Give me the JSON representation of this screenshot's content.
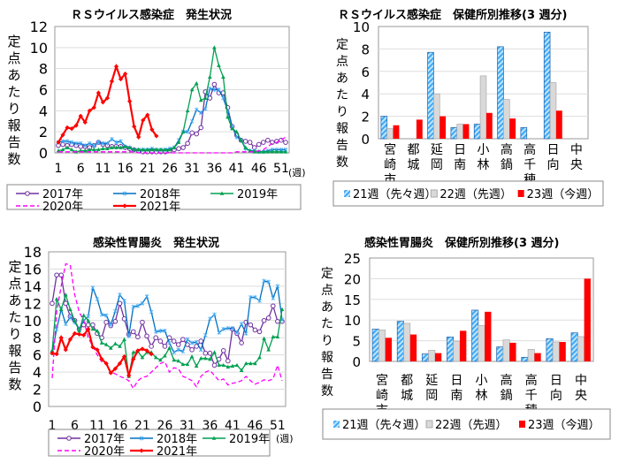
{
  "chart_data": [
    {
      "type": "line",
      "title": "ＲＳウイルス感染症　発生状況",
      "ylabel": "定点あたり報告数",
      "xlabel": "(週)",
      "ylim": [
        0,
        12
      ],
      "yticks": [
        0,
        2,
        4,
        6,
        8,
        10,
        12
      ],
      "xticks": [
        1,
        6,
        11,
        16,
        21,
        26,
        31,
        36,
        41,
        46,
        51
      ],
      "series": [
        {
          "name": "2017年",
          "color": "#7030a0",
          "marker": "circle",
          "values": [
            0.7,
            0.8,
            0.7,
            0.8,
            0.7,
            0.6,
            0.6,
            0.5,
            0.7,
            1.0,
            0.8,
            0.7,
            0.6,
            0.6,
            0.6,
            0.5,
            0.4,
            0.3,
            0.2,
            0.1,
            0.1,
            0.1,
            0.1,
            0.1,
            0.1,
            0.2,
            0.3,
            0.4,
            0.5,
            0.9,
            1.9,
            1.8,
            2.4,
            5.8,
            5.2,
            6.5,
            5.7,
            5.7,
            4.3,
            2.5,
            1.7,
            1.2,
            1.1,
            1.0,
            0.5,
            0.8,
            1.0,
            1.2,
            1.0,
            1.1,
            1.2,
            1.0
          ]
        },
        {
          "name": "2018年",
          "color": "#0070c0",
          "marker": "star",
          "values": [
            1.0,
            1.1,
            1.1,
            1.0,
            0.9,
            0.9,
            0.7,
            0.9,
            0.7,
            1.0,
            0.9,
            0.9,
            1.3,
            1.0,
            1.1,
            0.6,
            0.5,
            0.3,
            0.3,
            0.3,
            0.3,
            0.4,
            0.3,
            0.3,
            0.3,
            0.4,
            0.5,
            1.2,
            2.0,
            2.0,
            3.0,
            4.1,
            3.8,
            4.2,
            6.1,
            6.0,
            6.0,
            5.2,
            4.0,
            2.5,
            1.5,
            1.2,
            0.4,
            0.2,
            0.2,
            0.1,
            0.1,
            0.2,
            0.3,
            0.3,
            0.3,
            0.3
          ]
        },
        {
          "name": "2019年",
          "color": "#00a050",
          "marker": "triangle",
          "values": [
            0.2,
            0.3,
            0.5,
            0.3,
            0.1,
            0.2,
            0.2,
            0.3,
            0.3,
            0.3,
            0.4,
            0.4,
            0.5,
            0.5,
            0.5,
            0.6,
            0.5,
            0.3,
            0.3,
            0.3,
            0.3,
            0.3,
            0.3,
            0.3,
            0.3,
            0.3,
            0.5,
            1.0,
            2.0,
            4.0,
            6.0,
            6.6,
            5.0,
            5.2,
            7.2,
            10.0,
            8.3,
            7.2,
            3.4,
            2.3,
            2.0,
            1.2,
            0.5,
            0.2,
            0.1,
            0.1,
            0.1,
            0.1,
            0.1,
            0.1,
            0.1,
            0.1
          ]
        },
        {
          "name": "2020年",
          "color": "#ff00ff",
          "marker": "dash",
          "values": [
            0.1,
            0.1,
            0.1,
            0.1,
            0.1,
            0.1,
            0.1,
            0.1,
            0.1,
            0.1,
            0.1,
            0.1,
            0.1,
            0.1,
            0.1,
            0.1,
            0.1,
            0.1,
            0,
            0,
            0,
            0,
            0,
            0,
            0,
            0,
            0,
            0,
            0,
            0,
            0,
            0,
            0,
            0,
            0,
            0,
            0,
            0,
            0,
            0,
            0.1,
            0.1,
            0.1,
            0.1,
            0.1,
            0.2,
            0.3,
            0.6,
            0.9,
            1.0,
            1.2,
            1.5
          ]
        },
        {
          "name": "2021年",
          "color": "#ff0000",
          "marker": "diamond",
          "values": [
            1.0,
            1.7,
            2.4,
            2.3,
            2.6,
            3.5,
            2.9,
            4.0,
            4.3,
            5.7,
            4.8,
            5.2,
            6.8,
            8.2,
            7.0,
            7.5,
            4.9,
            2.5,
            1.5,
            3.1,
            3.6,
            2.2,
            1.6
          ]
        }
      ]
    },
    {
      "type": "bar",
      "title": "ＲＳウイルス感染症　保健所別推移(3 週分)",
      "ylabel": "定点あたり報告数",
      "ylim": [
        0,
        10
      ],
      "yticks": [
        0,
        2,
        4,
        6,
        8,
        10
      ],
      "categories": [
        "宮崎市",
        "都城",
        "延岡",
        "日南",
        "小林",
        "高鍋",
        "高千穂",
        "日向",
        "中央"
      ],
      "series": [
        {
          "name": "21週（先々週）",
          "color": "#3fa9f5",
          "pattern": "hatch",
          "values": [
            2.0,
            0,
            7.7,
            1.0,
            1.3,
            8.2,
            1.0,
            9.5,
            0
          ]
        },
        {
          "name": "22週（先週）",
          "color": "#d9d9d9",
          "pattern": "solid",
          "values": [
            0.9,
            0,
            4.0,
            1.3,
            5.6,
            3.5,
            0,
            5.0,
            0
          ]
        },
        {
          "name": "23週（今週）",
          "color": "#ff0000",
          "pattern": "solid",
          "values": [
            1.2,
            1.7,
            2.0,
            1.3,
            2.3,
            1.8,
            0,
            2.5,
            0
          ]
        }
      ]
    },
    {
      "type": "line",
      "title": "感染性胃腸炎　発生状況",
      "ylabel": "定点あたり報告数",
      "xlabel": "(週)",
      "ylim": [
        0,
        18
      ],
      "yticks": [
        0,
        2,
        4,
        6,
        8,
        10,
        12,
        14,
        16,
        18
      ],
      "xticks": [
        1,
        6,
        11,
        16,
        21,
        26,
        31,
        36,
        41,
        46,
        51
      ],
      "series": [
        {
          "name": "2017年",
          "color": "#7030a0",
          "marker": "circle",
          "values": [
            12,
            15.3,
            15.3,
            12,
            10.5,
            10,
            9,
            9.5,
            9.5,
            9.5,
            8.5,
            8,
            9.8,
            9.4,
            9.9,
            12,
            10.2,
            8.4,
            8.7,
            8.1,
            9.8,
            8.2,
            7,
            8,
            7.6,
            7,
            8,
            7.6,
            7.2,
            7.8,
            7.2,
            6.6,
            7,
            7.6,
            6.2,
            6.2,
            4.8,
            5.5,
            6.5,
            5.3,
            9,
            8.5,
            7.4,
            9.8,
            9.5,
            8.9,
            8.7,
            10,
            10.3,
            11.7,
            9.9,
            9.9
          ]
        },
        {
          "name": "2018年",
          "color": "#0070c0",
          "marker": "star",
          "values": [
            6.3,
            9,
            11.3,
            9.6,
            10.4,
            9.8,
            9,
            10,
            10.5,
            13.8,
            12.5,
            10.7,
            10.6,
            9.5,
            11.1,
            13,
            12.3,
            8.2,
            11.6,
            11.7,
            12,
            12.8,
            11,
            8.7,
            8.8,
            8.8,
            7.4,
            6.3,
            6.6,
            6.4,
            7.8,
            7.4,
            7.5,
            6.6,
            8.3,
            10.2,
            10.7,
            8.6,
            9,
            9.1,
            9.1,
            8.6,
            9.6,
            8.5,
            12.7,
            12.7,
            12.3,
            14.6,
            14.5,
            12.6,
            14,
            10.1
          ]
        },
        {
          "name": "2019年",
          "color": "#00a050",
          "marker": "triangle",
          "values": [
            6.5,
            12.5,
            11.3,
            13,
            11.3,
            10,
            8.8,
            10.6,
            10,
            9,
            8.8,
            7.4,
            7.2,
            6.8,
            7.3,
            7,
            7.8,
            3.5,
            6.3,
            6.4,
            5.7,
            6.3,
            6.3,
            5.7,
            5.4,
            5.9,
            6.8,
            5.4,
            5.3,
            4.9,
            4.9,
            5.8,
            4.7,
            5.6,
            5.6,
            5.5,
            6.3,
            4.8,
            4.8,
            4.6,
            4.7,
            4.8,
            4.2,
            5,
            5,
            5,
            5.7,
            7.9,
            6.6,
            8.1,
            8.1,
            11.3
          ]
        },
        {
          "name": "2020年",
          "color": "#ff00ff",
          "marker": "dash",
          "values": [
            3.3,
            11,
            14,
            16.6,
            16.5,
            13,
            11,
            10,
            8,
            7,
            6,
            5.2,
            5,
            4,
            3.8,
            3.5,
            3.3,
            3,
            2.1,
            3,
            3.4,
            3.5,
            4,
            4.5,
            5,
            5.2,
            4,
            4.5,
            4.4,
            3.5,
            3.3,
            3,
            2.3,
            3.5,
            4,
            4.2,
            3.6,
            3,
            3.2,
            2.5,
            2.7,
            2.8,
            3,
            3.5,
            3,
            2.6,
            2.8,
            3.1,
            3,
            3.2,
            4.8,
            3
          ]
        },
        {
          "name": "2021年",
          "color": "#ff0000",
          "marker": "diamond",
          "values": [
            6.2,
            6.1,
            8.0,
            6.6,
            7.8,
            8.5,
            8.4,
            8.3,
            9.0,
            6.9,
            6.6,
            5.5,
            5.0,
            3.9,
            4.4,
            5.0,
            5.8,
            3.6,
            5.5,
            6.5,
            6.7,
            6.5,
            6.1
          ]
        }
      ]
    },
    {
      "type": "bar",
      "title": "感染性胃腸炎　保健所別推移(3 週分)",
      "ylabel": "定点あたり報告数",
      "ylim": [
        0,
        25
      ],
      "yticks": [
        0,
        5,
        10,
        15,
        20,
        25
      ],
      "categories": [
        "宮崎市",
        "都城",
        "延岡",
        "日南",
        "小林",
        "高鍋",
        "高千穂",
        "日向",
        "中央"
      ],
      "series": [
        {
          "name": "21週（先々週）",
          "color": "#3fa9f5",
          "pattern": "hatch",
          "values": [
            7.8,
            9.7,
            1.8,
            5.9,
            12.4,
            3.5,
            1.0,
            5.5,
            6.9
          ]
        },
        {
          "name": "22週（先週）",
          "color": "#d9d9d9",
          "pattern": "solid",
          "values": [
            7.6,
            9.2,
            2.7,
            4.9,
            8.7,
            5.2,
            2.9,
            4.7,
            6.0
          ]
        },
        {
          "name": "23週（今週）",
          "color": "#ff0000",
          "pattern": "solid",
          "values": [
            5.7,
            6.5,
            2.0,
            7.4,
            12.0,
            4.5,
            2.0,
            4.7,
            20.0
          ]
        }
      ]
    }
  ]
}
